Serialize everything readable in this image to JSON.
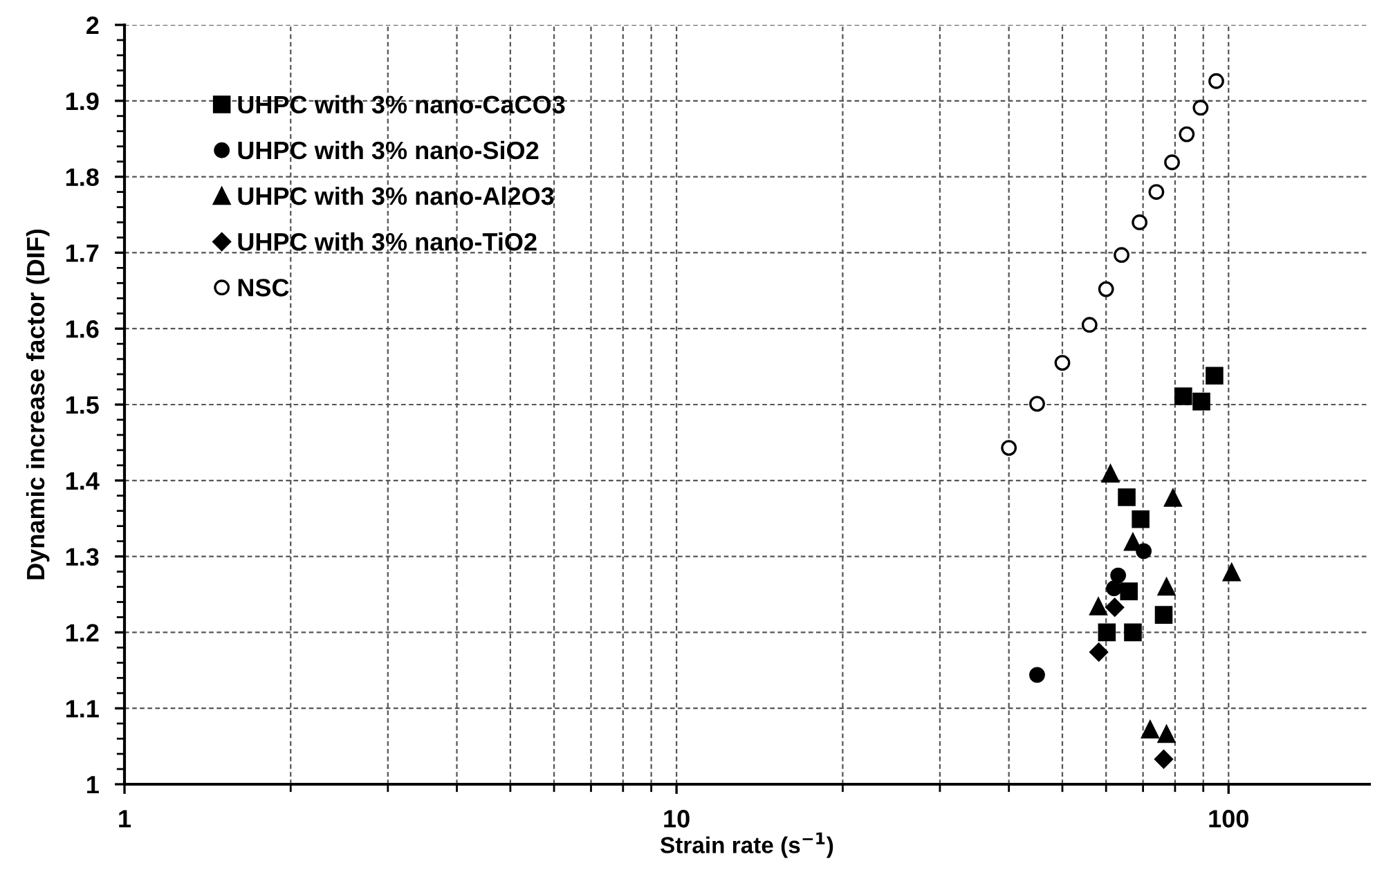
{
  "chart_data": {
    "type": "scatter",
    "xlabel": "Strain rate (s$^{−1}$)",
    "ylabel": "Dynamic increase factor (DIF)",
    "log": "x",
    "xlim": [
      1,
      180
    ],
    "ylim": [
      1,
      2
    ],
    "xticks": [
      1,
      {
        "value": 2,
        "label": null
      },
      {
        "value": 3,
        "label": null
      },
      {
        "value": 4,
        "label": null
      },
      {
        "value": 5,
        "label": null
      },
      {
        "value": 6,
        "label": null
      },
      {
        "value": 7,
        "label": null
      },
      {
        "value": 8,
        "label": null
      },
      {
        "value": 9,
        "label": null
      },
      10,
      {
        "value": 20,
        "label": null
      },
      {
        "value": 30,
        "label": null
      },
      {
        "value": 40,
        "label": null
      },
      {
        "value": 50,
        "label": null
      },
      {
        "value": 60,
        "label": null
      },
      {
        "value": 70,
        "label": null
      },
      {
        "value": 80,
        "label": null
      },
      {
        "value": 90,
        "label": null
      },
      100
    ],
    "yticks": [
      1,
      {
        "value": 1.02,
        "label": null
      },
      {
        "value": 1.04,
        "label": null
      },
      {
        "value": 1.06,
        "label": null
      },
      {
        "value": 1.08,
        "label": null
      },
      1.1,
      {
        "value": 1.12,
        "label": null
      },
      {
        "value": 1.14,
        "label": null
      },
      {
        "value": 1.16,
        "label": null
      },
      {
        "value": 1.18,
        "label": null
      },
      1.2,
      {
        "value": 1.22,
        "label": null
      },
      {
        "value": 1.24,
        "label": null
      },
      {
        "value": 1.26,
        "label": null
      },
      {
        "value": 1.28,
        "label": null
      },
      1.3,
      {
        "value": 1.32,
        "label": null
      },
      {
        "value": 1.34,
        "label": null
      },
      {
        "value": 1.36,
        "label": null
      },
      {
        "value": 1.38,
        "label": null
      },
      1.4,
      {
        "value": 1.42,
        "label": null
      },
      {
        "value": 1.44,
        "label": null
      },
      {
        "value": 1.46,
        "label": null
      },
      {
        "value": 1.48,
        "label": null
      },
      1.5,
      {
        "value": 1.52,
        "label": null
      },
      {
        "value": 1.54,
        "label": null
      },
      {
        "value": 1.56,
        "label": null
      },
      {
        "value": 1.58,
        "label": null
      },
      1.6,
      {
        "value": 1.62,
        "label": null
      },
      {
        "value": 1.64,
        "label": null
      },
      {
        "value": 1.66,
        "label": null
      },
      {
        "value": 1.68,
        "label": null
      },
      1.7,
      {
        "value": 1.72,
        "label": null
      },
      {
        "value": 1.74,
        "label": null
      },
      {
        "value": 1.76,
        "label": null
      },
      {
        "value": 1.78,
        "label": null
      },
      1.8,
      {
        "value": 1.82,
        "label": null
      },
      {
        "value": 1.84,
        "label": null
      },
      {
        "value": 1.86,
        "label": null
      },
      {
        "value": 1.88,
        "label": null
      },
      1.9,
      {
        "value": 1.92,
        "label": null
      },
      {
        "value": 1.94,
        "label": null
      },
      {
        "value": 1.96,
        "label": null
      },
      {
        "value": 1.98,
        "label": null
      },
      2
    ],
    "grid": true,
    "legend": "top left",
    "series": [
      {
        "name": "UHPC with 3% nano-CaCO3",
        "color": "#000000",
        "marker": "square",
        "x": [
          65.4,
          69.3,
          66.0,
          60.2,
          67.1,
          76.3,
          82.8,
          89.3,
          94.3
        ],
        "values": [
          1.378,
          1.349,
          1.254,
          1.2,
          1.2,
          1.223,
          1.511,
          1.504,
          1.538
        ]
      },
      {
        "name": "UHPC with 3% nano-SiO2",
        "color": "#000000",
        "marker": "circle",
        "x": [
          45.0,
          63.1,
          62.0,
          70.2
        ],
        "values": [
          1.144,
          1.275,
          1.258,
          1.307
        ]
      },
      {
        "name": "UHPC with 3% nano-Al2O3",
        "color": "#000000",
        "marker": "triangle",
        "x": [
          61.1,
          79.3,
          67.1,
          101.3,
          77.2,
          58.1,
          72.1,
          77.2
        ],
        "values": [
          1.409,
          1.377,
          1.319,
          1.279,
          1.26,
          1.234,
          1.072,
          1.066
        ]
      },
      {
        "name": "UHPC with 3% nano-TiO2",
        "color": "#000000",
        "marker": "diamond",
        "x": [
          62.2,
          58.2,
          76.3
        ],
        "values": [
          1.233,
          1.174,
          1.033
        ]
      },
      {
        "name": "NSC",
        "color": "#ffffff",
        "marker": "circle",
        "x": [
          40,
          45,
          50,
          56,
          60,
          64,
          69,
          74,
          79,
          84,
          89,
          95
        ],
        "values": [
          1.443,
          1.501,
          1.555,
          1.605,
          1.652,
          1.697,
          1.74,
          1.78,
          1.819,
          1.856,
          1.891,
          1.926
        ]
      }
    ]
  }
}
